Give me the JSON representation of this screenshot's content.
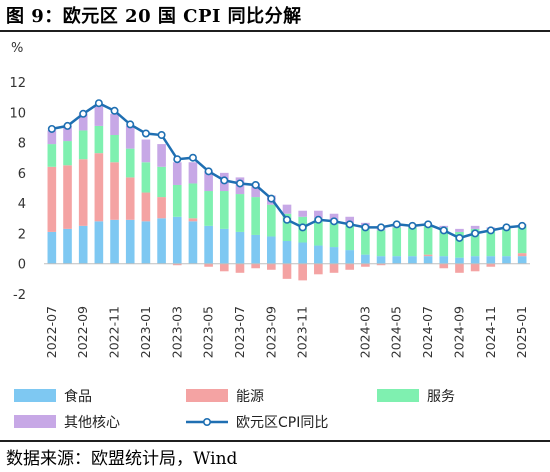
{
  "title": "图 9：欧元区 20 国 CPI 同比分解",
  "source": "数据来源：欧盟统计局，Wind",
  "colors": {
    "food": "#7ec8f2",
    "energy": "#f4a3a3",
    "services": "#7ff0b0",
    "core_other": "#c7a8e6",
    "line": "#1f6fb2"
  },
  "chart_data": {
    "type": "bar",
    "stacked": true,
    "ylabel": "%",
    "ylim": [
      -2,
      12
    ],
    "yticks": [
      -2,
      0,
      2,
      4,
      6,
      8,
      10,
      12
    ],
    "x": [
      "2022-07",
      "2022-08",
      "2022-09",
      "2022-10",
      "2022-11",
      "2022-12",
      "2023-01",
      "2023-02",
      "2023-03",
      "2023-04",
      "2023-05",
      "2023-06",
      "2023-07",
      "2023-08",
      "2023-09",
      "2023-10",
      "2023-11",
      "2023-12",
      "2024-01",
      "2024-02",
      "2024-03",
      "2024-04",
      "2024-05",
      "2024-06",
      "2024-07",
      "2024-08",
      "2024-09",
      "2024-10",
      "2024-11",
      "2024-12",
      "2025-01"
    ],
    "xtick_labels": [
      "2022-07",
      "2022-09",
      "2022-11",
      "2023-01",
      "2023-03",
      "2023-05",
      "2023-07",
      "2023-09",
      "2023-11",
      "2024-03",
      "2024-05",
      "2024-07",
      "2024-09",
      "2024-11",
      "2025-01"
    ],
    "series": [
      {
        "name": "食品",
        "key": "food",
        "values": [
          2.1,
          2.3,
          2.5,
          2.8,
          2.9,
          2.9,
          2.8,
          3.0,
          3.1,
          2.8,
          2.5,
          2.3,
          2.1,
          1.9,
          1.8,
          1.5,
          1.4,
          1.2,
          1.1,
          0.9,
          0.6,
          0.5,
          0.5,
          0.5,
          0.5,
          0.5,
          0.4,
          0.5,
          0.5,
          0.5,
          0.5
        ]
      },
      {
        "name": "能源",
        "key": "energy",
        "values": [
          4.3,
          4.2,
          4.4,
          4.5,
          3.8,
          2.8,
          1.9,
          1.4,
          -0.1,
          0.2,
          -0.2,
          -0.5,
          -0.6,
          -0.3,
          -0.4,
          -1.0,
          -1.1,
          -0.7,
          -0.6,
          -0.4,
          -0.2,
          -0.1,
          0.0,
          0.0,
          0.1,
          -0.3,
          -0.6,
          -0.5,
          -0.2,
          0.0,
          0.2
        ]
      },
      {
        "name": "服务",
        "key": "services",
        "values": [
          1.5,
          1.6,
          1.9,
          1.8,
          1.8,
          1.9,
          2.0,
          2.0,
          2.1,
          2.3,
          2.3,
          2.5,
          2.5,
          2.5,
          2.1,
          1.8,
          1.7,
          1.8,
          1.8,
          1.8,
          1.8,
          1.7,
          1.9,
          1.9,
          1.9,
          1.9,
          1.7,
          1.8,
          1.8,
          1.8,
          1.8
        ]
      },
      {
        "name": "其他核心",
        "key": "core_other",
        "values": [
          0.9,
          1.0,
          1.1,
          1.4,
          1.4,
          1.5,
          1.5,
          1.5,
          1.5,
          1.4,
          1.3,
          1.2,
          1.1,
          0.9,
          0.6,
          0.6,
          0.4,
          0.5,
          0.4,
          0.4,
          0.3,
          0.3,
          0.2,
          0.1,
          0.1,
          0.1,
          0.2,
          0.2,
          0.1,
          0.1,
          0.1
        ]
      }
    ],
    "line": {
      "name": "欧元区CPI同比",
      "values": [
        8.9,
        9.1,
        9.9,
        10.6,
        10.1,
        9.2,
        8.6,
        8.5,
        6.9,
        7.0,
        6.1,
        5.5,
        5.3,
        5.2,
        4.3,
        2.9,
        2.4,
        2.9,
        2.8,
        2.6,
        2.4,
        2.4,
        2.6,
        2.5,
        2.6,
        2.2,
        1.7,
        2.0,
        2.2,
        2.4,
        2.5
      ]
    },
    "legend": {
      "placement": "bottom",
      "items": [
        {
          "label": "食品",
          "key": "food",
          "kind": "bar"
        },
        {
          "label": "能源",
          "key": "energy",
          "kind": "bar"
        },
        {
          "label": "服务",
          "key": "services",
          "kind": "bar"
        },
        {
          "label": "其他核心",
          "key": "core_other",
          "kind": "bar"
        },
        {
          "label": "欧元区CPI同比",
          "key": "line",
          "kind": "line"
        }
      ]
    }
  }
}
